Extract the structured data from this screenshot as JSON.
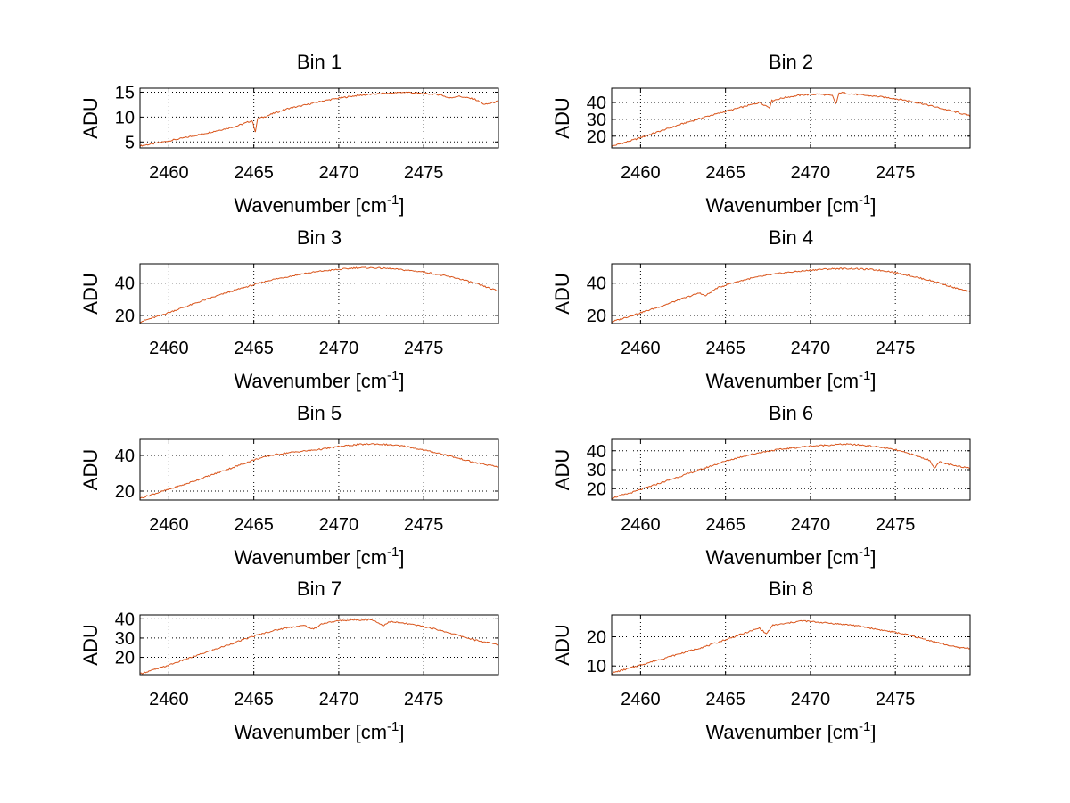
{
  "colors": {
    "line": "#d9541a",
    "axis": "#000000",
    "grid": "#000000",
    "background": "#ffffff"
  },
  "chart_data": [
    {
      "type": "line",
      "title": "Bin 1",
      "xlabel": "Wavenumber [cm",
      "xlabel_sup": "-1",
      "xlabel_close": "]",
      "ylabel": "ADU",
      "xlim": [
        2458.3,
        2479.4
      ],
      "ylim": [
        3.8,
        15.8
      ],
      "xticks": [
        2460,
        2465,
        2470,
        2475
      ],
      "yticks": [
        5,
        10,
        15
      ],
      "grid": true,
      "x": [
        2458.3,
        2459.5,
        2461,
        2462.5,
        2464,
        2464.9,
        2465.1,
        2465.2,
        2465.3,
        2465.6,
        2466.2,
        2467,
        2468,
        2469,
        2470,
        2471,
        2472,
        2473,
        2474,
        2475,
        2476,
        2476.5,
        2477,
        2478,
        2478.6,
        2479.4
      ],
      "y": [
        4.2,
        4.9,
        5.9,
        7.0,
        8.2,
        9.3,
        7.0,
        9.5,
        9.8,
        10.0,
        10.8,
        11.7,
        12.4,
        13.2,
        13.8,
        14.3,
        14.6,
        14.8,
        15.0,
        14.7,
        14.5,
        13.8,
        14.2,
        13.6,
        12.5,
        13.2
      ]
    },
    {
      "type": "line",
      "title": "Bin 2",
      "xlabel": "Wavenumber [cm",
      "xlabel_sup": "-1",
      "xlabel_close": "]",
      "ylabel": "ADU",
      "xlim": [
        2458.3,
        2479.4
      ],
      "ylim": [
        13,
        48.5
      ],
      "xticks": [
        2460,
        2465,
        2470,
        2475
      ],
      "yticks": [
        20,
        30,
        40
      ],
      "grid": true,
      "x": [
        2458.3,
        2459.5,
        2461,
        2462.5,
        2464,
        2465.5,
        2467,
        2467.6,
        2467.7,
        2468.5,
        2469.5,
        2470.5,
        2471.3,
        2471.5,
        2471.7,
        2472.5,
        2473.5,
        2474.5,
        2475.5,
        2476.5,
        2477.5,
        2478.5,
        2479.4
      ],
      "y": [
        14,
        17.5,
        22.5,
        27.5,
        32,
        36,
        40,
        37,
        41,
        43,
        44.5,
        45,
        44,
        39,
        46,
        45,
        44,
        43,
        41.5,
        39.5,
        37,
        34.5,
        32
      ]
    },
    {
      "type": "line",
      "title": "Bin 3",
      "xlabel": "Wavenumber [cm",
      "xlabel_sup": "-1",
      "xlabel_close": "]",
      "ylabel": "ADU",
      "xlim": [
        2458.3,
        2479.4
      ],
      "ylim": [
        15,
        52
      ],
      "xticks": [
        2460,
        2465,
        2470,
        2475
      ],
      "yticks": [
        20,
        40
      ],
      "grid": true,
      "x": [
        2458.3,
        2459.5,
        2461,
        2462.5,
        2464,
        2465,
        2466,
        2467,
        2468,
        2469,
        2470,
        2471,
        2472,
        2473,
        2474,
        2475,
        2476,
        2477,
        2478,
        2479.4
      ],
      "y": [
        16,
        20,
        25.5,
        31,
        36,
        39,
        42,
        44,
        46,
        47.5,
        48.5,
        49.5,
        49.5,
        49,
        48,
        47,
        45,
        43,
        40,
        35
      ]
    },
    {
      "type": "line",
      "title": "Bin 4",
      "xlabel": "Wavenumber [cm",
      "xlabel_sup": "-1",
      "xlabel_close": "]",
      "ylabel": "ADU",
      "xlim": [
        2458.3,
        2479.4
      ],
      "ylim": [
        15,
        52
      ],
      "xticks": [
        2460,
        2465,
        2470,
        2475
      ],
      "yticks": [
        20,
        40
      ],
      "grid": true,
      "x": [
        2458.3,
        2459.5,
        2461,
        2462.5,
        2463.5,
        2463.8,
        2464.5,
        2465.5,
        2466.5,
        2467.5,
        2468.5,
        2469.5,
        2470.5,
        2471.5,
        2472.5,
        2473.5,
        2474.5,
        2475.5,
        2476.5,
        2477.5,
        2478.5,
        2479.4
      ],
      "y": [
        16,
        20,
        25,
        30.5,
        34,
        32,
        37,
        40.5,
        43,
        45,
        46.5,
        47.5,
        48.5,
        49,
        49,
        48.5,
        47.5,
        45.5,
        43,
        40.5,
        37,
        34.5
      ]
    },
    {
      "type": "line",
      "title": "Bin 5",
      "xlabel": "Wavenumber [cm",
      "xlabel_sup": "-1",
      "xlabel_close": "]",
      "ylabel": "ADU",
      "xlim": [
        2458.3,
        2479.4
      ],
      "ylim": [
        15,
        49
      ],
      "xticks": [
        2460,
        2465,
        2470,
        2475
      ],
      "yticks": [
        20,
        40
      ],
      "grid": true,
      "x": [
        2458.3,
        2459.5,
        2461,
        2462.5,
        2464,
        2465,
        2466,
        2467,
        2468,
        2469,
        2470,
        2471,
        2472,
        2473,
        2474,
        2475,
        2476,
        2477,
        2478,
        2479.4
      ],
      "y": [
        16,
        19.5,
        24,
        29,
        34,
        37.5,
        40,
        41.5,
        42.5,
        43.5,
        45,
        46,
        46.5,
        46,
        45,
        43,
        41,
        38.5,
        36,
        33.5
      ]
    },
    {
      "type": "line",
      "title": "Bin 6",
      "xlabel": "Wavenumber [cm",
      "xlabel_sup": "-1",
      "xlabel_close": "]",
      "ylabel": "ADU",
      "xlim": [
        2458.3,
        2479.4
      ],
      "ylim": [
        14,
        46
      ],
      "xticks": [
        2460,
        2465,
        2470,
        2475
      ],
      "yticks": [
        20,
        30,
        40
      ],
      "grid": true,
      "x": [
        2458.3,
        2459.5,
        2461,
        2462.5,
        2464,
        2465,
        2466,
        2467,
        2468,
        2469,
        2470,
        2471,
        2472,
        2473,
        2474,
        2475,
        2476,
        2477,
        2477.3,
        2477.6,
        2478.5,
        2479.4
      ],
      "y": [
        15,
        18,
        22.5,
        27,
        31.5,
        34.5,
        37,
        39,
        40.5,
        41.5,
        42.5,
        43,
        43.5,
        43,
        42,
        40.5,
        38,
        35,
        31,
        34,
        32,
        31
      ]
    },
    {
      "type": "line",
      "title": "Bin 7",
      "xlabel": "Wavenumber [cm",
      "xlabel_sup": "-1",
      "xlabel_close": "]",
      "ylabel": "ADU",
      "xlim": [
        2458.3,
        2479.4
      ],
      "ylim": [
        11,
        42
      ],
      "xticks": [
        2460,
        2465,
        2470,
        2475
      ],
      "yticks": [
        20,
        30,
        40
      ],
      "grid": true,
      "x": [
        2458.3,
        2459.5,
        2461,
        2462.5,
        2464,
        2465,
        2466,
        2467,
        2468,
        2468.5,
        2469,
        2470,
        2471,
        2472,
        2472.6,
        2473,
        2474,
        2475,
        2476,
        2477,
        2478,
        2479.4
      ],
      "y": [
        11.5,
        14.5,
        19,
        23.5,
        28,
        31,
        33.5,
        35.5,
        36.5,
        34.5,
        37.5,
        39,
        39.5,
        39.5,
        36.5,
        38.5,
        37.5,
        36,
        34,
        31.5,
        29,
        26.5
      ]
    },
    {
      "type": "line",
      "title": "Bin 8",
      "xlabel": "Wavenumber [cm",
      "xlabel_sup": "-1",
      "xlabel_close": "]",
      "ylabel": "ADU",
      "xlim": [
        2458.3,
        2479.4
      ],
      "ylim": [
        7,
        27.5
      ],
      "xticks": [
        2460,
        2465,
        2470,
        2475
      ],
      "yticks": [
        10,
        20
      ],
      "grid": true,
      "x": [
        2458.3,
        2459.5,
        2461,
        2462.5,
        2464,
        2465,
        2466,
        2467,
        2467.4,
        2467.8,
        2468.5,
        2469.5,
        2470.5,
        2471.5,
        2472.5,
        2473.5,
        2474.5,
        2475.5,
        2476.5,
        2477.5,
        2478.5,
        2479.4
      ],
      "y": [
        7.5,
        9.5,
        12,
        14.5,
        17,
        19,
        21,
        23,
        21,
        24,
        24.5,
        25.5,
        25,
        24.5,
        24,
        23,
        22,
        21,
        19.5,
        18,
        16.5,
        16
      ]
    }
  ]
}
